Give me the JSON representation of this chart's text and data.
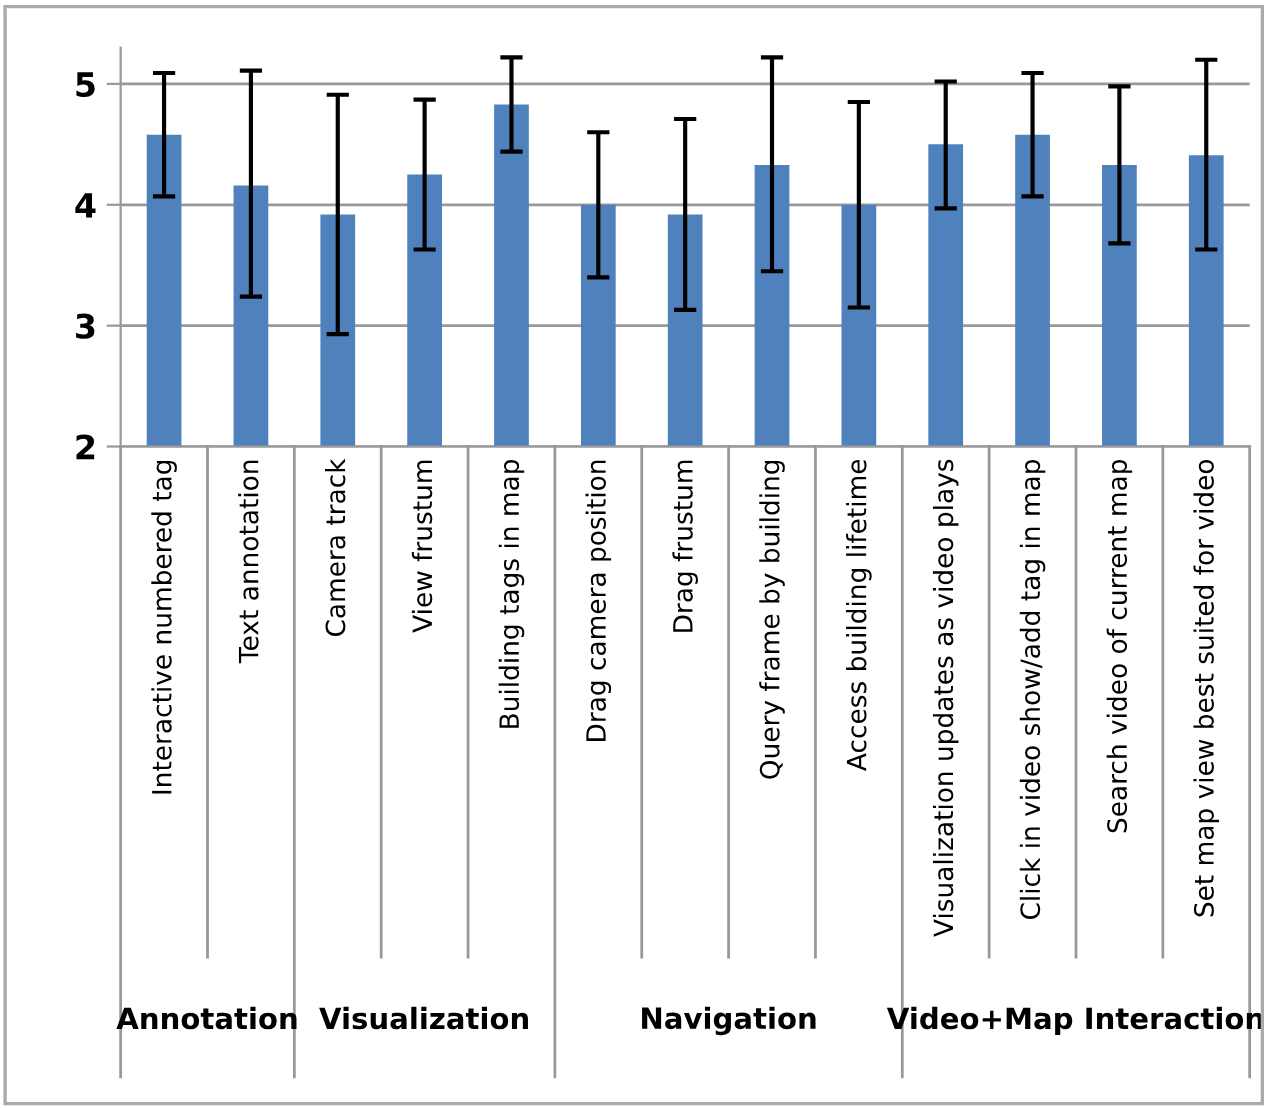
{
  "chart_data": {
    "type": "bar",
    "categories": [
      "Interactive numbered tag",
      "Text annotation",
      "Camera track",
      "View frustum",
      "Building tags in map",
      "Drag camera position",
      "Drag frustum",
      "Query frame by building",
      "Access building lifetime",
      "Visualization updates as video plays",
      "Click in video show/add tag in map",
      "Search video of current map",
      "Set map view best suited for video"
    ],
    "values": [
      4.58,
      4.16,
      3.92,
      4.25,
      4.83,
      4.0,
      3.92,
      4.33,
      4.0,
      4.5,
      4.58,
      4.33,
      4.41
    ],
    "errors": [
      [
        4.07,
        5.09
      ],
      [
        3.24,
        5.11
      ],
      [
        2.93,
        4.91
      ],
      [
        3.63,
        4.87
      ],
      [
        4.44,
        5.22
      ],
      [
        3.4,
        4.6
      ],
      [
        3.13,
        4.71
      ],
      [
        3.45,
        5.22
      ],
      [
        3.15,
        4.85
      ],
      [
        3.97,
        5.02
      ],
      [
        4.07,
        5.09
      ],
      [
        3.68,
        4.98
      ],
      [
        3.63,
        5.2
      ]
    ],
    "color": "#4f81bd",
    "ylim": [
      2,
      5.3
    ],
    "yticks": [
      2,
      3,
      4,
      5
    ],
    "grid": "y",
    "annotations": [
      "Annotation",
      "Visualization",
      "Navigation",
      "Video+Map Interaction"
    ]
  }
}
